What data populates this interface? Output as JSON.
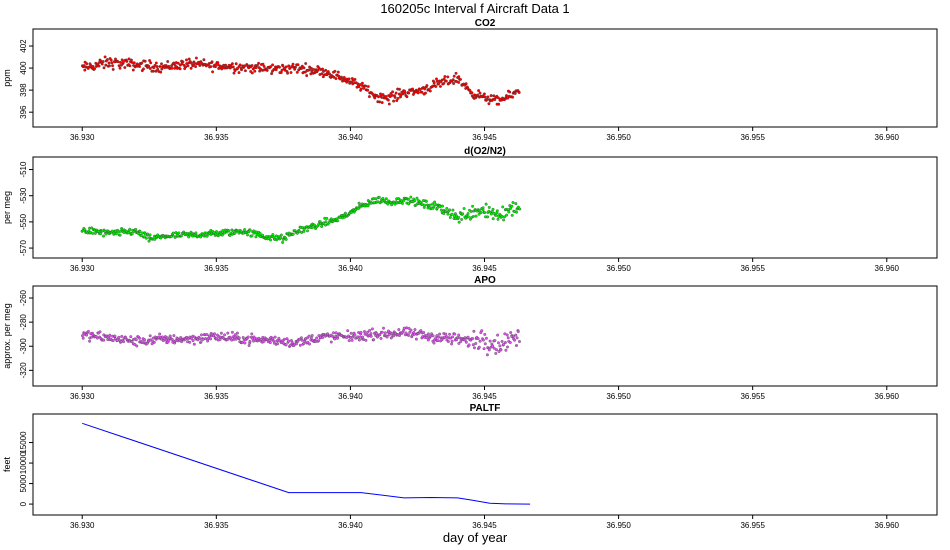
{
  "title": "160205c   Interval f Aircraft Data 1",
  "xlabel": "day of year",
  "chart_data": [
    {
      "type": "scatter",
      "title": "CO2",
      "ylabel": "ppm",
      "xlim": [
        36.9285,
        36.9615
      ],
      "ylim": [
        395.2,
        403.0
      ],
      "xticks": [
        36.93,
        36.935,
        36.94,
        36.945,
        36.95,
        36.955,
        36.96
      ],
      "xtick_labels": [
        "36.930",
        "36.935",
        "36.940",
        "36.945",
        "36.950",
        "36.955",
        "36.960"
      ],
      "yticks": [
        396,
        398,
        400,
        402
      ],
      "ytick_labels": [
        "396",
        "398",
        "400",
        "402"
      ],
      "color": "#ff0000",
      "series": [
        {
          "x": [
            36.93,
            36.931,
            36.932,
            36.933,
            36.934,
            36.935,
            36.936,
            36.937,
            36.938,
            36.939,
            36.9395,
            36.94,
            36.9405,
            36.941,
            36.9415,
            36.942,
            36.9425,
            36.943,
            36.9435,
            36.944,
            36.9445,
            36.945,
            36.9455,
            36.946,
            36.9463
          ],
          "y": [
            400.0,
            400.5,
            400.3,
            400.1,
            400.4,
            400.2,
            400.1,
            399.9,
            400.0,
            399.7,
            399.3,
            398.8,
            398.2,
            397.4,
            397.3,
            397.8,
            397.9,
            398.3,
            398.7,
            399.1,
            397.8,
            397.3,
            397.0,
            397.5,
            398.0
          ],
          "spread": [
            0.7,
            0.8,
            0.7,
            0.7,
            0.7,
            0.7,
            0.7,
            0.7,
            0.7,
            0.6,
            0.6,
            0.6,
            0.6,
            0.6,
            0.8,
            0.6,
            0.6,
            0.7,
            0.7,
            0.7,
            0.6,
            0.6,
            0.6,
            0.6,
            0.5
          ]
        }
      ]
    },
    {
      "type": "scatter",
      "title": "d(O2/N2)",
      "ylabel": "per meg",
      "xlim": [
        36.9285,
        36.9615
      ],
      "ylim": [
        -573,
        -505
      ],
      "xticks": [
        36.93,
        36.935,
        36.94,
        36.945,
        36.95,
        36.955,
        36.96
      ],
      "xtick_labels": [
        "36.930",
        "36.935",
        "36.940",
        "36.945",
        "36.950",
        "36.955",
        "36.960"
      ],
      "yticks": [
        -570,
        -550,
        -530,
        -510
      ],
      "ytick_labels": [
        "-570",
        "-550",
        "-530",
        "-510"
      ],
      "color": "#00ee00",
      "series": [
        {
          "x": [
            36.93,
            36.931,
            36.932,
            36.9325,
            36.933,
            36.934,
            36.935,
            36.936,
            36.937,
            36.9375,
            36.938,
            36.939,
            36.9395,
            36.94,
            36.9405,
            36.941,
            36.9415,
            36.942,
            36.9425,
            36.943,
            36.9435,
            36.944,
            36.9445,
            36.945,
            36.9455,
            36.946,
            36.9463
          ],
          "y": [
            -556,
            -559,
            -557,
            -563,
            -561,
            -560,
            -559,
            -557,
            -562,
            -563,
            -557,
            -551,
            -548,
            -543,
            -537,
            -533,
            -535,
            -533,
            -535,
            -538,
            -540,
            -547,
            -542,
            -540,
            -545,
            -540,
            -537
          ],
          "spread": [
            4,
            4,
            4,
            4,
            3,
            4,
            4,
            4,
            4,
            4,
            4,
            4,
            4,
            4,
            4,
            4,
            4,
            4,
            4,
            5,
            6,
            7,
            9,
            10,
            11,
            10,
            8
          ]
        }
      ]
    },
    {
      "type": "scatter",
      "title": "APO",
      "ylabel": "approx. per meg",
      "xlim": [
        36.9285,
        36.9615
      ],
      "ylim": [
        -328,
        -255
      ],
      "xticks": [
        36.93,
        36.935,
        36.94,
        36.945,
        36.95,
        36.955,
        36.96
      ],
      "xtick_labels": [
        "36.930",
        "36.935",
        "36.940",
        "36.945",
        "36.950",
        "36.955",
        "36.960"
      ],
      "yticks": [
        -320,
        -300,
        -280,
        -260
      ],
      "ytick_labels": [
        "-320",
        "-300",
        "-280",
        "-260"
      ],
      "color": "#dd55ee",
      "series": [
        {
          "x": [
            36.93,
            36.931,
            36.932,
            36.933,
            36.934,
            36.935,
            36.936,
            36.937,
            36.938,
            36.939,
            36.94,
            36.941,
            36.942,
            36.943,
            36.944,
            36.9445,
            36.945,
            36.9455,
            36.946,
            36.9463
          ],
          "y": [
            -291,
            -293,
            -296,
            -294,
            -294,
            -292,
            -294,
            -295,
            -297,
            -292,
            -292,
            -290,
            -289,
            -292,
            -294,
            -296,
            -294,
            -299,
            -293,
            -293
          ],
          "spread": [
            6,
            6,
            6,
            6,
            6,
            6,
            6,
            6,
            6,
            6,
            6,
            6,
            6,
            7,
            8,
            10,
            14,
            13,
            10,
            8
          ]
        }
      ]
    },
    {
      "type": "line",
      "title": "PALTF",
      "ylabel": "feet",
      "xlim": [
        36.9285,
        36.9615
      ],
      "ylim": [
        -1200,
        20500
      ],
      "xticks": [
        36.93,
        36.935,
        36.94,
        36.945,
        36.95,
        36.955,
        36.96
      ],
      "xtick_labels": [
        "36.930",
        "36.935",
        "36.940",
        "36.945",
        "36.950",
        "36.955",
        "36.960"
      ],
      "yticks": [
        0,
        5000,
        10000,
        15000
      ],
      "ytick_labels": [
        "0",
        "5000",
        "10000",
        "15000"
      ],
      "color": "#0000ff",
      "series": [
        {
          "x": [
            36.93,
            36.9377,
            36.9404,
            36.942,
            36.943,
            36.944,
            36.9445,
            36.9452,
            36.9458,
            36.9467
          ],
          "y": [
            19700,
            2800,
            2800,
            1500,
            1600,
            1500,
            1000,
            200,
            50,
            0
          ]
        }
      ]
    }
  ]
}
